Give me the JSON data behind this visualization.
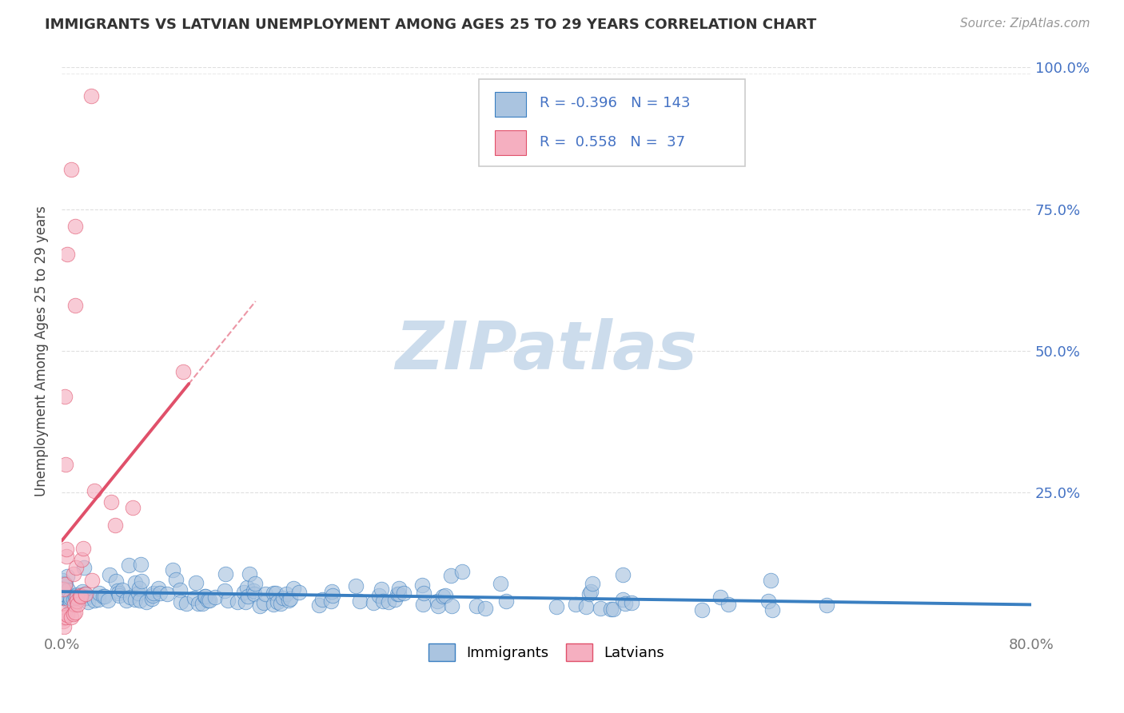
{
  "title": "IMMIGRANTS VS LATVIAN UNEMPLOYMENT AMONG AGES 25 TO 29 YEARS CORRELATION CHART",
  "source": "Source: ZipAtlas.com",
  "ylabel": "Unemployment Among Ages 25 to 29 years",
  "xlim": [
    0.0,
    0.8
  ],
  "ylim": [
    0.0,
    1.0
  ],
  "xticks": [
    0.0,
    0.1,
    0.2,
    0.3,
    0.4,
    0.5,
    0.6,
    0.7,
    0.8
  ],
  "xticklabels": [
    "0.0%",
    "",
    "",
    "",
    "",
    "",
    "",
    "",
    "80.0%"
  ],
  "yticks": [
    0.0,
    0.25,
    0.5,
    0.75,
    1.0
  ],
  "yticklabels": [
    "",
    "25.0%",
    "50.0%",
    "75.0%",
    "100.0%"
  ],
  "immigrants_R": -0.396,
  "immigrants_N": 143,
  "latvians_R": 0.558,
  "latvians_N": 37,
  "immigrants_color": "#aac4e0",
  "latvians_color": "#f5afc0",
  "immigrants_line_color": "#3a7fc1",
  "latvians_line_color": "#e0506a",
  "watermark_color": "#ccdcec",
  "title_color": "#333333",
  "source_color": "#999999",
  "ylabel_color": "#444444",
  "grid_color": "#d8d8d8",
  "tick_color": "#777777",
  "right_tick_color": "#4472c4",
  "legend_border_color": "#cccccc",
  "seed": 42
}
